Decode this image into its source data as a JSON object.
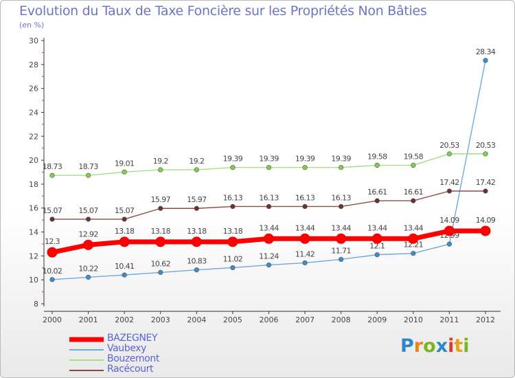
{
  "header": {
    "title": "Evolution du Taux de Taxe Foncière sur les Propriétés Non Bâties",
    "subtitle": "(en %)"
  },
  "logo": {
    "text": "Proxiti",
    "letters": [
      "P",
      "r",
      "o",
      "x",
      "i",
      "t",
      "i"
    ],
    "colors": [
      "#2f86c9",
      "#e8841a",
      "#7bb51e",
      "#2f86c9",
      "#d93b2a",
      "#e8a31a",
      "#7bb51e"
    ]
  },
  "chart_data": {
    "type": "line",
    "title": "Evolution du Taux de Taxe Foncière sur les Propriétés Non Bâties",
    "ylabel": "(en %)",
    "xlabel": "",
    "x": [
      "2000",
      "2001",
      "2002",
      "2003",
      "2004",
      "2005",
      "2006",
      "2007",
      "2008",
      "2009",
      "2010",
      "2011",
      "2012"
    ],
    "ylim": [
      8,
      30
    ],
    "yticks": [
      8,
      10,
      12,
      14,
      16,
      18,
      20,
      22,
      24,
      26,
      28,
      30
    ],
    "grid": false,
    "legend_position": "bottom-left",
    "series": [
      {
        "name": "BAZEGNEY",
        "color": "#ff0000",
        "emphasis": true,
        "values": [
          12.3,
          12.92,
          13.18,
          13.18,
          13.18,
          13.18,
          13.44,
          13.44,
          13.44,
          13.44,
          13.44,
          14.09,
          14.09
        ],
        "labels": [
          "12.3",
          "12.92",
          "13.18",
          "13.18",
          "13.18",
          "13.18",
          "13.44",
          "13.44",
          "13.44",
          "13.44",
          "13.44",
          "14.09",
          "14.09"
        ]
      },
      {
        "name": "Vaubexy",
        "color": "#6fa8d6",
        "marker_color": "#3d8ccd",
        "emphasis": false,
        "values": [
          10.02,
          10.22,
          10.41,
          10.62,
          10.83,
          11.02,
          11.24,
          11.42,
          11.71,
          12.1,
          12.21,
          12.99,
          28.34
        ],
        "labels": [
          "10.02",
          "10.22",
          "10.41",
          "10.62",
          "10.83",
          "11.02",
          "11.24",
          "11.42",
          "11.71",
          "12.1",
          "12.21",
          "12.99",
          "28.34"
        ]
      },
      {
        "name": "Bouzemont",
        "color": "#a3de82",
        "marker_color": "#7fd04a",
        "emphasis": false,
        "values": [
          18.73,
          18.73,
          19.01,
          19.2,
          19.2,
          19.39,
          19.39,
          19.39,
          19.39,
          19.58,
          19.58,
          20.53,
          20.53
        ],
        "labels": [
          "18.73",
          "18.73",
          "19.01",
          "19.2",
          "19.2",
          "19.39",
          "19.39",
          "19.39",
          "19.39",
          "19.58",
          "19.58",
          "20.53",
          "20.53"
        ]
      },
      {
        "name": "Racécourt",
        "color": "#8b4a4a",
        "marker_color": "#6e2f2f",
        "emphasis": false,
        "values": [
          15.07,
          15.07,
          15.07,
          15.97,
          15.97,
          16.13,
          16.13,
          16.13,
          16.13,
          16.61,
          16.61,
          17.42,
          17.42
        ],
        "labels": [
          "15.07",
          "15.07",
          "15.07",
          "15.97",
          "15.97",
          "16.13",
          "16.13",
          "16.13",
          "16.13",
          "16.61",
          "16.61",
          "17.42",
          "17.42"
        ]
      }
    ]
  }
}
